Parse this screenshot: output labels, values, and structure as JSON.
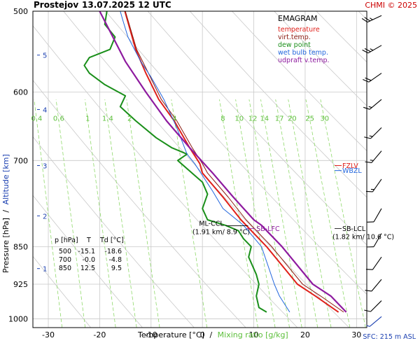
{
  "header": {
    "station": "Prostejov",
    "datetime": "13.07.2025 12 UTC",
    "copyright": "CHMI © 2025"
  },
  "footer": {
    "sfc": "SFC: 215 m ASL"
  },
  "chart_data": {
    "type": "line",
    "title": "EMAGRAM",
    "xlabel": "Temperature [°C]",
    "xlabel2": "Mixing ratio [g/kg]",
    "xlabel_sep": "/",
    "ylabel": "Pressure [hPa]",
    "ylabel2": "Altitude [km]",
    "ylabel_sep": "/",
    "xlim": [
      -33,
      32
    ],
    "ylim": [
      1020,
      500
    ],
    "y_scale": "log",
    "grid": true,
    "x_ticks": [
      -30,
      -20,
      -10,
      0,
      10,
      20,
      30
    ],
    "x_tick_labels": [
      "-30",
      "-20",
      "-10",
      "0",
      "10",
      "20",
      "30"
    ],
    "p_ticks": [
      500,
      600,
      700,
      850,
      925,
      1000
    ],
    "p_tick_labels": [
      "500",
      "600",
      "700",
      "850",
      "925",
      "1000"
    ],
    "alt_ticks": [
      {
        "label": "1",
        "p": 893
      },
      {
        "label": "2",
        "p": 793
      },
      {
        "label": "3",
        "p": 708
      },
      {
        "label": "4",
        "p": 624
      },
      {
        "label": "5",
        "p": 552
      }
    ],
    "mixing_ratio_labels": [
      "0.4",
      "0.6",
      "1",
      "1.4",
      "2",
      "4",
      "8",
      "10",
      "12",
      "14",
      "17",
      "20",
      "25",
      "30"
    ],
    "mixing_ratio_values": [
      0.4,
      0.6,
      1,
      1.4,
      2,
      4,
      8,
      10,
      12,
      14,
      17,
      20,
      25,
      30
    ],
    "series": [
      {
        "name": "temperature",
        "color": "#e0201a",
        "points": [
          [
            26.5,
            985
          ],
          [
            22,
            950
          ],
          [
            18.5,
            925
          ],
          [
            12.5,
            850
          ],
          [
            7.5,
            800
          ],
          [
            4,
            760
          ],
          [
            0,
            720
          ],
          [
            -0.5,
            705
          ],
          [
            -2.5,
            680
          ],
          [
            -5.5,
            640
          ],
          [
            -8.5,
            610
          ],
          [
            -11,
            575
          ],
          [
            -13,
            545
          ],
          [
            -15.1,
            500
          ]
        ]
      },
      {
        "name": "virt.temp.",
        "color": "#8b1a10",
        "points": [
          [
            27.5,
            985
          ],
          [
            23,
            950
          ],
          [
            19.5,
            925
          ],
          [
            13.5,
            850
          ],
          [
            8.5,
            800
          ],
          [
            5,
            760
          ],
          [
            1,
            720
          ],
          [
            0,
            705
          ],
          [
            -2,
            680
          ],
          [
            -5,
            640
          ],
          [
            -8,
            610
          ],
          [
            -10.5,
            575
          ],
          [
            -12.8,
            545
          ],
          [
            -15,
            500
          ]
        ]
      },
      {
        "name": "dew point",
        "color": "#1a8f1a",
        "points": [
          [
            12.5,
            985
          ],
          [
            11,
            975
          ],
          [
            10.5,
            950
          ],
          [
            11,
            925
          ],
          [
            10.5,
            905
          ],
          [
            9,
            870
          ],
          [
            9.5,
            850
          ],
          [
            8,
            835
          ],
          [
            7,
            820
          ],
          [
            4.5,
            810
          ],
          [
            1,
            800
          ],
          [
            0,
            780
          ],
          [
            1,
            755
          ],
          [
            0,
            735
          ],
          [
            -4.8,
            700
          ],
          [
            -3,
            690
          ],
          [
            -6,
            680
          ],
          [
            -9,
            665
          ],
          [
            -13,
            640
          ],
          [
            -16,
            620
          ],
          [
            -15,
            605
          ],
          [
            -19,
            590
          ],
          [
            -22,
            575
          ],
          [
            -23,
            565
          ],
          [
            -22,
            555
          ],
          [
            -18,
            545
          ],
          [
            -17,
            530
          ],
          [
            -19,
            515
          ],
          [
            -18.6,
            500
          ]
        ]
      },
      {
        "name": "wet bulb temp.",
        "color": "#2266dd",
        "points": [
          [
            17,
            985
          ],
          [
            15,
            950
          ],
          [
            14,
            925
          ],
          [
            11.5,
            850
          ],
          [
            8,
            810
          ],
          [
            4,
            780
          ],
          [
            2,
            750
          ],
          [
            -1.5,
            705
          ],
          [
            -3,
            690
          ],
          [
            -5,
            650
          ],
          [
            -7.5,
            610
          ],
          [
            -10,
            580
          ],
          [
            -12,
            560
          ],
          [
            -14.5,
            530
          ],
          [
            -15.5,
            510
          ],
          [
            -16,
            500
          ]
        ]
      },
      {
        "name": "udpraft v.temp.",
        "color": "#8e1a9f",
        "points": [
          [
            28,
            985
          ],
          [
            25,
            950
          ],
          [
            21.5,
            925
          ],
          [
            15.5,
            850
          ],
          [
            11.5,
            810
          ],
          [
            10,
            800
          ],
          [
            6,
            760
          ],
          [
            2,
            720
          ],
          [
            -2.5,
            680
          ],
          [
            -7,
            640
          ],
          [
            -11,
            600
          ],
          [
            -15,
            560
          ],
          [
            -20,
            500
          ]
        ]
      }
    ],
    "level_markers": [
      {
        "label": "FZLV",
        "p": 708,
        "color": "#e0201a"
      },
      {
        "label": "WBZL",
        "p": 716,
        "color": "#2266dd"
      }
    ],
    "annotations": [
      {
        "label": "ML-CCL",
        "detail": "(1.91 km/ 8.9 °C)",
        "p": 812,
        "t": 8.9
      },
      {
        "label": "SB-LFC",
        "p": 816,
        "t": 10.5
      },
      {
        "label": "SB-LCL",
        "detail": "(1.82 km/ 10.6 °C)",
        "p": 816,
        "t": 10.6
      }
    ],
    "table": {
      "headers": [
        "p [hPa]",
        "T",
        "Td [°C]"
      ],
      "rows": [
        [
          "500",
          "-15.1",
          "-18.6"
        ],
        [
          "700",
          "-0.0",
          "-4.8"
        ],
        [
          "850",
          "12.5",
          "9.5"
        ]
      ]
    },
    "wind_barbs": [
      {
        "p": 505,
        "dir": 245,
        "speed": 25
      },
      {
        "p": 540,
        "dir": 240,
        "speed": 25
      },
      {
        "p": 575,
        "dir": 235,
        "speed": 20
      },
      {
        "p": 610,
        "dir": 230,
        "speed": 15
      },
      {
        "p": 650,
        "dir": 225,
        "speed": 15
      },
      {
        "p": 685,
        "dir": 220,
        "speed": 15
      },
      {
        "p": 730,
        "dir": 215,
        "speed": 15
      },
      {
        "p": 780,
        "dir": 210,
        "speed": 10
      },
      {
        "p": 825,
        "dir": 210,
        "speed": 10
      },
      {
        "p": 870,
        "dir": 215,
        "speed": 10
      },
      {
        "p": 915,
        "dir": 220,
        "speed": 10
      },
      {
        "p": 960,
        "dir": 225,
        "speed": 10
      },
      {
        "p": 995,
        "dir": 230,
        "speed": 5
      }
    ]
  }
}
